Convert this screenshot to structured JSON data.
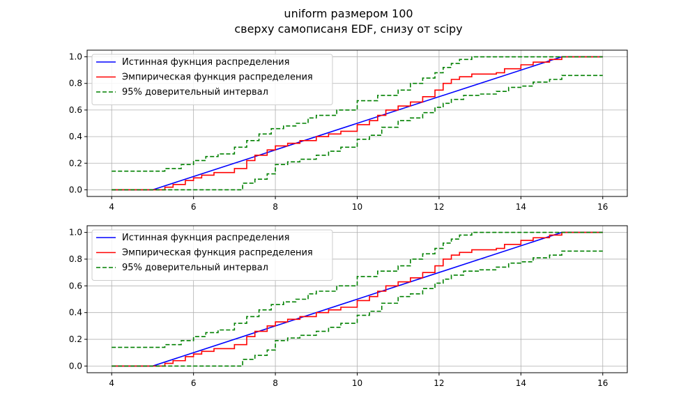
{
  "figure": {
    "title_line1": "uniform размером 100",
    "title_line2": "сверху самописаня EDF, снизу от scipy"
  },
  "colors": {
    "true_cdf": "#0000ff",
    "edf": "#ff0000",
    "ci": "#008000",
    "grid": "#b0b0b0"
  },
  "chart_data": [
    {
      "type": "line",
      "title": "",
      "xlabel": "",
      "ylabel": "",
      "xlim": [
        3.4,
        16.6
      ],
      "ylim": [
        -0.05,
        1.05
      ],
      "xticks": [
        4,
        6,
        8,
        10,
        12,
        14,
        16
      ],
      "xtick_labels": [
        "4",
        "6",
        "8",
        "10",
        "12",
        "14",
        "16"
      ],
      "yticks": [
        0.0,
        0.2,
        0.4,
        0.6,
        0.8,
        1.0
      ],
      "ytick_labels": [
        "0.0",
        "0.2",
        "0.4",
        "0.6",
        "0.8",
        "1.0"
      ],
      "grid": true,
      "legend_position": "top-left",
      "series": [
        {
          "name": "Истинная фукнция распределения",
          "color": "#0000ff",
          "style": "solid",
          "x": [
            4,
            5,
            15,
            16
          ],
          "y": [
            0,
            0,
            1,
            1
          ]
        },
        {
          "name": "Эмпирическая функция распределения",
          "color": "#ff0000",
          "style": "solid",
          "x": [
            4,
            5.1,
            5.3,
            5.5,
            5.8,
            6.0,
            6.2,
            6.5,
            7.0,
            7.3,
            7.5,
            7.8,
            8.0,
            8.3,
            8.6,
            9.0,
            9.3,
            9.6,
            10.0,
            10.3,
            10.5,
            10.7,
            11.0,
            11.3,
            11.6,
            11.9,
            12.1,
            12.3,
            12.5,
            12.8,
            13.4,
            13.6,
            14.0,
            14.3,
            14.7,
            15.0,
            16.0
          ],
          "y": [
            0,
            0,
            0.02,
            0.04,
            0.07,
            0.09,
            0.11,
            0.13,
            0.16,
            0.22,
            0.26,
            0.3,
            0.33,
            0.35,
            0.37,
            0.4,
            0.42,
            0.44,
            0.49,
            0.52,
            0.56,
            0.6,
            0.63,
            0.66,
            0.7,
            0.75,
            0.8,
            0.83,
            0.85,
            0.87,
            0.88,
            0.91,
            0.94,
            0.96,
            0.98,
            1.0,
            1.0
          ]
        },
        {
          "name": "95% доверительный интервал",
          "color": "#008000",
          "style": "dashed",
          "x": [
            4,
            5.0,
            5.3,
            5.7,
            6.0,
            6.3,
            6.6,
            7.0,
            7.3,
            7.6,
            7.9,
            8.2,
            8.5,
            8.8,
            9.0,
            9.5,
            10.0,
            10.5,
            11.0,
            11.3,
            11.6,
            11.9,
            12.1,
            12.3,
            12.5,
            12.8,
            16.0
          ],
          "y": [
            0.14,
            0.14,
            0.16,
            0.19,
            0.22,
            0.25,
            0.27,
            0.32,
            0.37,
            0.42,
            0.46,
            0.48,
            0.5,
            0.54,
            0.56,
            0.6,
            0.67,
            0.71,
            0.75,
            0.8,
            0.84,
            0.88,
            0.92,
            0.95,
            0.98,
            1.0,
            1.0
          ]
        },
        {
          "name": "",
          "color": "#008000",
          "style": "dashed",
          "x": [
            4,
            6.9,
            7.2,
            7.5,
            7.8,
            8.0,
            8.3,
            8.6,
            9.0,
            9.3,
            9.6,
            10.0,
            10.3,
            10.6,
            11.0,
            11.3,
            11.6,
            11.9,
            12.1,
            12.3,
            12.6,
            13.0,
            13.4,
            13.7,
            14.0,
            14.3,
            14.7,
            15.0,
            16.0
          ],
          "y": [
            0,
            0,
            0.05,
            0.08,
            0.12,
            0.19,
            0.21,
            0.23,
            0.26,
            0.29,
            0.32,
            0.38,
            0.41,
            0.47,
            0.52,
            0.54,
            0.58,
            0.62,
            0.65,
            0.68,
            0.71,
            0.72,
            0.74,
            0.77,
            0.78,
            0.81,
            0.83,
            0.86,
            0.86
          ]
        }
      ]
    },
    {
      "type": "line",
      "title": "",
      "xlabel": "",
      "ylabel": "",
      "xlim": [
        3.4,
        16.6
      ],
      "ylim": [
        -0.05,
        1.05
      ],
      "xticks": [
        4,
        6,
        8,
        10,
        12,
        14,
        16
      ],
      "xtick_labels": [
        "4",
        "6",
        "8",
        "10",
        "12",
        "14",
        "16"
      ],
      "yticks": [
        0.0,
        0.2,
        0.4,
        0.6,
        0.8,
        1.0
      ],
      "ytick_labels": [
        "0.0",
        "0.2",
        "0.4",
        "0.6",
        "0.8",
        "1.0"
      ],
      "grid": true,
      "legend_position": "top-left",
      "series": [
        {
          "name": "Истинная фукнция распределения",
          "color": "#0000ff",
          "style": "solid",
          "x": [
            4,
            5,
            15,
            16
          ],
          "y": [
            0,
            0,
            1,
            1
          ]
        },
        {
          "name": "Эмпирическая функция распределения",
          "color": "#ff0000",
          "style": "solid",
          "x": [
            4,
            5.1,
            5.3,
            5.5,
            5.8,
            6.0,
            6.2,
            6.5,
            7.0,
            7.3,
            7.5,
            7.8,
            8.0,
            8.3,
            8.6,
            9.0,
            9.3,
            9.6,
            10.0,
            10.3,
            10.5,
            10.7,
            11.0,
            11.3,
            11.6,
            11.9,
            12.1,
            12.3,
            12.5,
            12.8,
            13.4,
            13.6,
            14.0,
            14.3,
            14.7,
            15.0,
            16.0
          ],
          "y": [
            0,
            0,
            0.02,
            0.04,
            0.07,
            0.09,
            0.11,
            0.13,
            0.16,
            0.22,
            0.26,
            0.3,
            0.33,
            0.35,
            0.37,
            0.4,
            0.42,
            0.44,
            0.49,
            0.52,
            0.56,
            0.6,
            0.63,
            0.66,
            0.7,
            0.75,
            0.8,
            0.83,
            0.85,
            0.87,
            0.88,
            0.91,
            0.94,
            0.96,
            0.98,
            1.0,
            1.0
          ]
        },
        {
          "name": "95% доверительный интервал",
          "color": "#008000",
          "style": "dashed",
          "x": [
            4,
            5.0,
            5.3,
            5.7,
            6.0,
            6.3,
            6.6,
            7.0,
            7.3,
            7.6,
            7.9,
            8.2,
            8.5,
            8.8,
            9.0,
            9.5,
            10.0,
            10.5,
            11.0,
            11.3,
            11.6,
            11.9,
            12.1,
            12.3,
            12.5,
            12.8,
            16.0
          ],
          "y": [
            0.14,
            0.14,
            0.16,
            0.19,
            0.22,
            0.25,
            0.27,
            0.32,
            0.37,
            0.42,
            0.46,
            0.48,
            0.5,
            0.54,
            0.56,
            0.6,
            0.67,
            0.71,
            0.75,
            0.8,
            0.84,
            0.88,
            0.92,
            0.95,
            0.98,
            1.0,
            1.0
          ]
        },
        {
          "name": "",
          "color": "#008000",
          "style": "dashed",
          "x": [
            4,
            6.9,
            7.2,
            7.5,
            7.8,
            8.0,
            8.3,
            8.6,
            9.0,
            9.3,
            9.6,
            10.0,
            10.3,
            10.6,
            11.0,
            11.3,
            11.6,
            11.9,
            12.1,
            12.3,
            12.6,
            13.0,
            13.4,
            13.7,
            14.0,
            14.3,
            14.7,
            15.0,
            16.0
          ],
          "y": [
            0,
            0,
            0.05,
            0.08,
            0.12,
            0.19,
            0.21,
            0.23,
            0.26,
            0.29,
            0.32,
            0.38,
            0.41,
            0.47,
            0.52,
            0.54,
            0.58,
            0.62,
            0.65,
            0.68,
            0.71,
            0.72,
            0.74,
            0.77,
            0.78,
            0.81,
            0.83,
            0.86,
            0.86
          ]
        }
      ]
    }
  ]
}
